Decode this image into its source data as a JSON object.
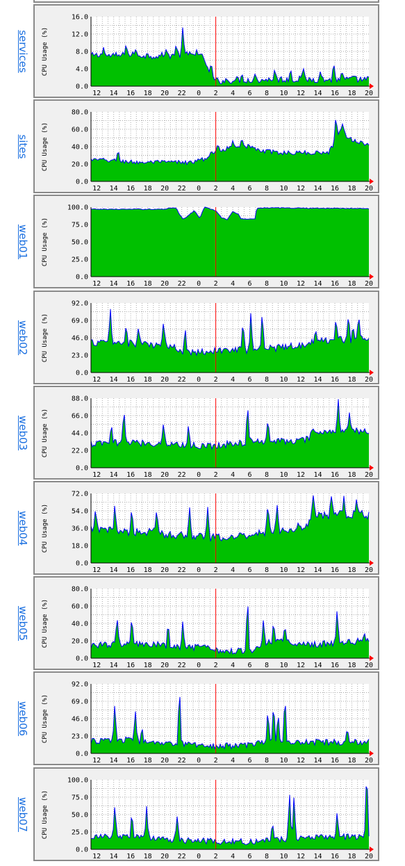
{
  "page": {
    "accent": "#1a6fe0",
    "fill_color": "#00c000",
    "line_color": "#0000ff",
    "now_line_color": "#ff0000",
    "background": "#f0f0f0",
    "plot_background": "#ffffff"
  },
  "x_ticks": [
    "12",
    "14",
    "16",
    "18",
    "20",
    "22",
    "0",
    "2",
    "4",
    "6",
    "8",
    "10",
    "12",
    "14",
    "16",
    "18",
    "20"
  ],
  "chart_data": [
    {
      "type": "area",
      "host": "services",
      "ylabel": "CPU Usage (%)",
      "ylim": [
        0,
        16
      ],
      "yticks": [
        "0.0",
        "4.0",
        "8.0",
        "12.0",
        "16.0"
      ],
      "grid": true,
      "now_marker_x": 11,
      "profile": [
        [
          0,
          7
        ],
        [
          2,
          7
        ],
        [
          4,
          7.2
        ],
        [
          6,
          7
        ],
        [
          8,
          7.3
        ],
        [
          9,
          7.2
        ],
        [
          10,
          6.5
        ],
        [
          10.5,
          2
        ],
        [
          11,
          1.2
        ],
        [
          13,
          1.5
        ],
        [
          15,
          1.5
        ],
        [
          17,
          1.6
        ],
        [
          19,
          1.6
        ],
        [
          21,
          1.5
        ],
        [
          23,
          1.6
        ],
        [
          24.5,
          1.5
        ]
      ],
      "noise": 0.8,
      "spikes": [
        [
          1.1,
          9
        ],
        [
          3.1,
          10
        ],
        [
          3.9,
          8.5
        ],
        [
          6.6,
          8.5
        ],
        [
          7.5,
          9.5
        ],
        [
          8.1,
          14
        ],
        [
          9.3,
          8.5
        ],
        [
          10.6,
          6
        ],
        [
          16.2,
          4
        ],
        [
          17.6,
          4
        ],
        [
          18.7,
          4.5
        ],
        [
          21.4,
          5.5
        ],
        [
          22.1,
          3.5
        ],
        [
          20.2,
          3.5
        ],
        [
          14.5,
          3
        ],
        [
          13.3,
          2.8
        ]
      ]
    },
    {
      "type": "area",
      "host": "sites",
      "ylabel": "CPU Usage (%)",
      "ylim": [
        0,
        80
      ],
      "yticks": [
        "0.0",
        "20.0",
        "40.0",
        "60.0",
        "80.0"
      ],
      "grid": true,
      "now_marker_x": 11,
      "profile": [
        [
          0,
          25
        ],
        [
          2,
          24
        ],
        [
          4,
          22
        ],
        [
          6,
          22
        ],
        [
          8,
          22
        ],
        [
          9,
          22
        ],
        [
          10,
          26
        ],
        [
          11,
          35
        ],
        [
          12,
          38
        ],
        [
          13,
          42
        ],
        [
          14,
          40
        ],
        [
          15,
          35
        ],
        [
          17,
          33
        ],
        [
          19,
          33
        ],
        [
          20,
          33
        ],
        [
          21,
          34
        ],
        [
          22,
          58
        ],
        [
          23,
          48
        ],
        [
          24.5,
          42
        ]
      ],
      "noise": 2.5,
      "spikes": [
        [
          2.4,
          37
        ],
        [
          11.2,
          43
        ],
        [
          12.5,
          47
        ],
        [
          13.3,
          50
        ],
        [
          21.6,
          78
        ],
        [
          22.2,
          68
        ]
      ]
    },
    {
      "type": "area",
      "host": "web01",
      "ylabel": "CPU Usage (%)",
      "ylim": [
        0,
        100
      ],
      "yticks": [
        "0.0",
        "25.0",
        "50.0",
        "75.0",
        "100.0"
      ],
      "grid": true,
      "now_marker_x": 11,
      "profile": [
        [
          0,
          97
        ],
        [
          6.5,
          97
        ],
        [
          7,
          99
        ],
        [
          7.5,
          99
        ],
        [
          7.8,
          90
        ],
        [
          8.1,
          83
        ],
        [
          8.6,
          88
        ],
        [
          9.1,
          95
        ],
        [
          9.6,
          84
        ],
        [
          10,
          100
        ],
        [
          10.4,
          98
        ],
        [
          11,
          95
        ],
        [
          11.5,
          85
        ],
        [
          12,
          82
        ],
        [
          12.5,
          94
        ],
        [
          13,
          90
        ],
        [
          13.2,
          83
        ],
        [
          14.5,
          83
        ],
        [
          14.6,
          99
        ],
        [
          24.5,
          98
        ]
      ],
      "noise": 0.6,
      "spikes": []
    },
    {
      "type": "area",
      "host": "web02",
      "ylabel": "CPU Usage (%)",
      "ylim": [
        0,
        92
      ],
      "yticks": [
        "0.0",
        "23.0",
        "46.0",
        "69.0",
        "92.0"
      ],
      "grid": true,
      "now_marker_x": 11,
      "profile": [
        [
          0,
          40
        ],
        [
          4,
          38
        ],
        [
          7,
          35
        ],
        [
          8,
          28
        ],
        [
          10,
          28
        ],
        [
          12,
          30
        ],
        [
          14,
          30
        ],
        [
          17,
          34
        ],
        [
          19,
          38
        ],
        [
          21,
          44
        ],
        [
          24.5,
          44
        ]
      ],
      "noise": 5,
      "spikes": [
        [
          1.7,
          88
        ],
        [
          3.1,
          65
        ],
        [
          4.2,
          62
        ],
        [
          6.4,
          70
        ],
        [
          8.3,
          62
        ],
        [
          13.4,
          70
        ],
        [
          14.1,
          82
        ],
        [
          15.1,
          82
        ],
        [
          19.8,
          58
        ],
        [
          21.6,
          72
        ],
        [
          22.7,
          78
        ],
        [
          23.6,
          78
        ],
        [
          23.1,
          62
        ]
      ]
    },
    {
      "type": "area",
      "host": "web03",
      "ylabel": "CPU Usage (%)",
      "ylim": [
        0,
        88
      ],
      "yticks": [
        "0.0",
        "22.0",
        "44.0",
        "66.0",
        "88.0"
      ],
      "grid": true,
      "now_marker_x": 11,
      "profile": [
        [
          0,
          30
        ],
        [
          3,
          32
        ],
        [
          6,
          31
        ],
        [
          9,
          28
        ],
        [
          10.5,
          28
        ],
        [
          12,
          30
        ],
        [
          15,
          34
        ],
        [
          18,
          34
        ],
        [
          19.2,
          36
        ],
        [
          19.5,
          45
        ],
        [
          21,
          46
        ],
        [
          24.5,
          46
        ]
      ],
      "noise": 4.5,
      "spikes": [
        [
          2.9,
          78
        ],
        [
          1.8,
          56
        ],
        [
          6.4,
          60
        ],
        [
          8.6,
          56
        ],
        [
          13.8,
          84
        ],
        [
          15.6,
          64
        ],
        [
          21.8,
          88
        ],
        [
          22.8,
          72
        ]
      ]
    },
    {
      "type": "area",
      "host": "web04",
      "ylabel": "CPU Usage (%)",
      "ylim": [
        0,
        72
      ],
      "yticks": [
        "0.0",
        "18.0",
        "36.0",
        "54.0",
        "72.0"
      ],
      "grid": true,
      "now_marker_x": 11,
      "profile": [
        [
          0,
          34
        ],
        [
          3,
          33
        ],
        [
          5,
          32
        ],
        [
          7,
          30
        ],
        [
          9,
          28
        ],
        [
          10.5,
          26
        ],
        [
          12,
          26
        ],
        [
          14,
          30
        ],
        [
          16,
          34
        ],
        [
          18,
          36
        ],
        [
          19.2,
          40
        ],
        [
          19.5,
          50
        ],
        [
          21,
          50
        ],
        [
          24.5,
          50
        ]
      ],
      "noise": 4.5,
      "spikes": [
        [
          0.4,
          58
        ],
        [
          2.1,
          62
        ],
        [
          3.6,
          58
        ],
        [
          5.8,
          58
        ],
        [
          8.7,
          58
        ],
        [
          10.3,
          60
        ],
        [
          15.6,
          62
        ],
        [
          19.6,
          70
        ],
        [
          21.2,
          70
        ],
        [
          22.3,
          70
        ],
        [
          23.4,
          66
        ],
        [
          16.4,
          62
        ]
      ]
    },
    {
      "type": "area",
      "host": "web05",
      "ylabel": "CPU Usage (%)",
      "ylim": [
        0,
        80
      ],
      "yticks": [
        "0.0",
        "20.0",
        "40.0",
        "60.0",
        "80.0"
      ],
      "grid": true,
      "now_marker_x": 11,
      "profile": [
        [
          0,
          15
        ],
        [
          3,
          17
        ],
        [
          6,
          15
        ],
        [
          8,
          12
        ],
        [
          10,
          12
        ],
        [
          12,
          8
        ],
        [
          14,
          9
        ],
        [
          16,
          20
        ],
        [
          18,
          18
        ],
        [
          20,
          16
        ],
        [
          22,
          18
        ],
        [
          24.5,
          20
        ]
      ],
      "noise": 4,
      "spikes": [
        [
          2.3,
          48
        ],
        [
          3.6,
          50
        ],
        [
          6.8,
          42
        ],
        [
          8.1,
          45
        ],
        [
          13.8,
          75
        ],
        [
          15.2,
          45
        ],
        [
          16.1,
          42
        ],
        [
          17.1,
          38
        ],
        [
          21.7,
          58
        ],
        [
          24.1,
          30
        ]
      ]
    },
    {
      "type": "area",
      "host": "web06",
      "ylabel": "CPU Usage (%)",
      "ylim": [
        0,
        92
      ],
      "yticks": [
        "0.0",
        "23.0",
        "46.0",
        "69.0",
        "92.0"
      ],
      "grid": true,
      "now_marker_x": 11,
      "profile": [
        [
          0,
          16
        ],
        [
          3,
          18
        ],
        [
          5,
          14
        ],
        [
          7,
          12
        ],
        [
          9,
          12
        ],
        [
          11,
          10
        ],
        [
          13,
          10
        ],
        [
          15,
          14
        ],
        [
          17,
          16
        ],
        [
          20,
          15
        ],
        [
          24.5,
          15
        ]
      ],
      "noise": 4,
      "spikes": [
        [
          2.1,
          68
        ],
        [
          3.9,
          60
        ],
        [
          4.5,
          36
        ],
        [
          7.8,
          92
        ],
        [
          15.6,
          62
        ],
        [
          16.5,
          55
        ],
        [
          16.1,
          70
        ],
        [
          17.1,
          80
        ],
        [
          22.6,
          35
        ]
      ]
    },
    {
      "type": "area",
      "host": "web07",
      "ylabel": "CPU Usage (%)",
      "ylim": [
        0,
        100
      ],
      "yticks": [
        "0.0",
        "25.0",
        "50.0",
        "75.0",
        "100.0"
      ],
      "grid": true,
      "now_marker_x": 11,
      "profile": [
        [
          0,
          18
        ],
        [
          3,
          18
        ],
        [
          6,
          16
        ],
        [
          8,
          13
        ],
        [
          10,
          12
        ],
        [
          12,
          11
        ],
        [
          14,
          11
        ],
        [
          16,
          14
        ],
        [
          18,
          16
        ],
        [
          20,
          18
        ],
        [
          23,
          18
        ],
        [
          24.2,
          18
        ],
        [
          24.3,
          100
        ],
        [
          24.5,
          18
        ]
      ],
      "noise": 4.5,
      "spikes": [
        [
          2.1,
          65
        ],
        [
          3.6,
          55
        ],
        [
          4.9,
          62
        ],
        [
          7.6,
          48
        ],
        [
          16,
          40
        ],
        [
          17.5,
          85
        ],
        [
          17.9,
          80
        ],
        [
          21.7,
          55
        ],
        [
          24.3,
          100
        ]
      ]
    }
  ]
}
